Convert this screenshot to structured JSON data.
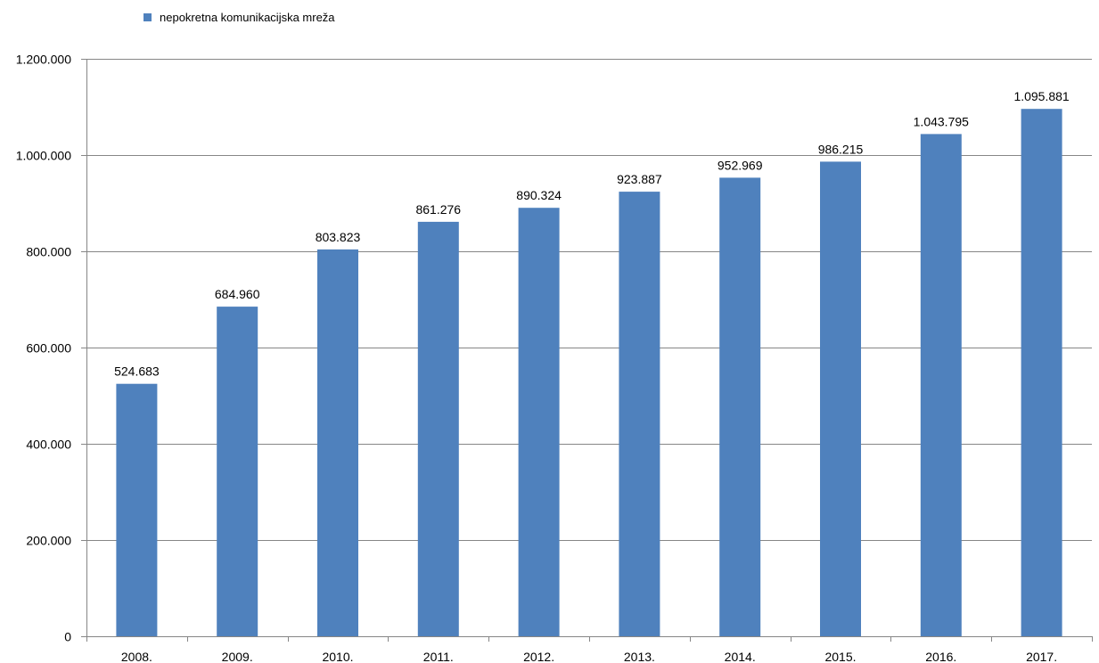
{
  "chart_data": {
    "type": "bar",
    "title": "",
    "xlabel": "",
    "ylabel": "",
    "legend": {
      "position": "top-left",
      "entries": [
        "nepokretna komunikacijska mreža"
      ]
    },
    "categories": [
      "2008.",
      "2009.",
      "2010.",
      "2011.",
      "2012.",
      "2013.",
      "2014.",
      "2015.",
      "2016.",
      "2017."
    ],
    "series": [
      {
        "name": "nepokretna komunikacijska mreža",
        "color": "#4F81BD",
        "values": [
          524683,
          684960,
          803823,
          861276,
          890324,
          923887,
          952969,
          986215,
          1043795,
          1095881
        ],
        "data_labels": [
          "524.683",
          "684.960",
          "803.823",
          "861.276",
          "890.324",
          "923.887",
          "952.969",
          "986.215",
          "1.043.795",
          "1.095.881"
        ]
      }
    ],
    "ylim": [
      0,
      1200000
    ],
    "yticks": [
      0,
      200000,
      400000,
      600000,
      800000,
      1000000,
      1200000
    ],
    "ytick_labels": [
      "0",
      "200.000",
      "400.000",
      "600.000",
      "800.000",
      "1.000.000",
      "1.200.000"
    ],
    "grid": {
      "horizontal": true,
      "vertical": false,
      "color": "#868686"
    },
    "axis_color": "#868686"
  }
}
